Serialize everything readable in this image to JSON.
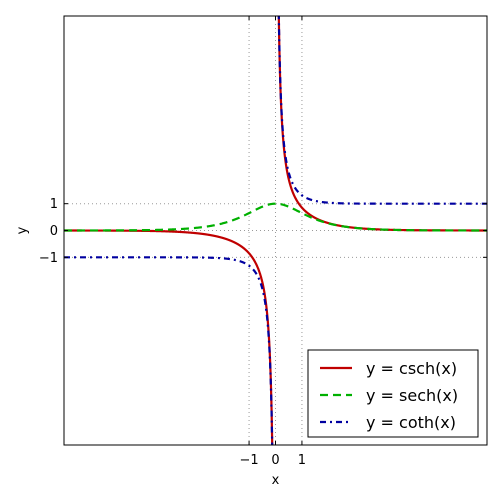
{
  "chart_data": {
    "type": "line",
    "xlabel": "x",
    "ylabel": "y",
    "xlim": [
      -8,
      8
    ],
    "ylim": [
      -8,
      8
    ],
    "grid": "dotted lines at ticks",
    "x_ticks": [
      {
        "value": -1,
        "label": "−1"
      },
      {
        "value": 0,
        "label": "0"
      },
      {
        "value": 1,
        "label": "1"
      }
    ],
    "y_ticks": [
      {
        "value": 1,
        "label": "1"
      },
      {
        "value": 0,
        "label": "0"
      },
      {
        "value": -1,
        "label": "−1"
      }
    ],
    "legend_position": "bottom-right",
    "series": [
      {
        "name": "y = csch(x)",
        "function": "csch",
        "color": "#c00000",
        "style": "solid",
        "x": [
          -8,
          -6,
          -4,
          -3,
          -2,
          -1.5,
          -1,
          -0.5,
          -0.25,
          -0.15,
          0.15,
          0.25,
          0.5,
          1,
          1.5,
          2,
          3,
          4,
          6,
          8
        ],
        "y": [
          -0.0007,
          -0.005,
          -0.037,
          -0.1,
          -0.28,
          -0.47,
          -0.85,
          -1.92,
          -3.96,
          -6.64,
          6.64,
          3.96,
          1.92,
          0.85,
          0.47,
          0.28,
          0.1,
          0.037,
          0.005,
          0.0007
        ]
      },
      {
        "name": "y = sech(x)",
        "function": "sech",
        "color": "#00b000",
        "style": "dashed",
        "x": [
          -8,
          -6,
          -4,
          -3,
          -2,
          -1.5,
          -1,
          -0.5,
          0,
          0.5,
          1,
          1.5,
          2,
          3,
          4,
          6,
          8
        ],
        "y": [
          0.0007,
          0.005,
          0.037,
          0.1,
          0.27,
          0.43,
          0.65,
          0.89,
          1,
          0.89,
          0.65,
          0.43,
          0.27,
          0.1,
          0.037,
          0.005,
          0.0007
        ]
      },
      {
        "name": "y = coth(x)",
        "function": "coth",
        "color": "#0000a0",
        "style": "dash-dot",
        "x": [
          -8,
          -6,
          -4,
          -3,
          -2,
          -1.5,
          -1,
          -0.5,
          -0.25,
          -0.15,
          0.15,
          0.25,
          0.5,
          1,
          1.5,
          2,
          3,
          4,
          6,
          8
        ],
        "y": [
          -1,
          -1,
          -1.001,
          -1.005,
          -1.04,
          -1.1,
          -1.31,
          -2.16,
          -4.08,
          -6.72,
          6.72,
          4.08,
          2.16,
          1.31,
          1.1,
          1.04,
          1.005,
          1.001,
          1,
          1
        ]
      }
    ]
  }
}
